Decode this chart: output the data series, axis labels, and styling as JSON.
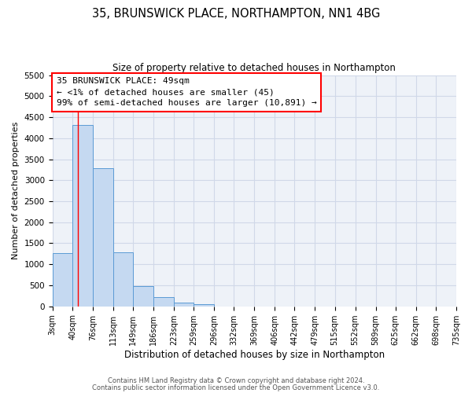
{
  "title1": "35, BRUNSWICK PLACE, NORTHAMPTON, NN1 4BG",
  "title2": "Size of property relative to detached houses in Northampton",
  "xlabel": "Distribution of detached houses by size in Northampton",
  "ylabel": "Number of detached properties",
  "bin_edges": [
    3,
    40,
    76,
    113,
    149,
    186,
    223,
    259,
    296,
    332,
    369,
    406,
    442,
    479,
    515,
    552,
    589,
    625,
    662,
    698,
    735
  ],
  "bar_heights": [
    1270,
    4320,
    3290,
    1290,
    480,
    220,
    85,
    55,
    0,
    0,
    0,
    0,
    0,
    0,
    0,
    0,
    0,
    0,
    0,
    0
  ],
  "bar_color": "#c5d9f1",
  "bar_edge_color": "#5b9bd5",
  "ylim": [
    0,
    5500
  ],
  "yticks": [
    0,
    500,
    1000,
    1500,
    2000,
    2500,
    3000,
    3500,
    4000,
    4500,
    5000,
    5500
  ],
  "xtick_labels": [
    "3sqm",
    "40sqm",
    "76sqm",
    "113sqm",
    "149sqm",
    "186sqm",
    "223sqm",
    "259sqm",
    "296sqm",
    "332sqm",
    "369sqm",
    "406sqm",
    "442sqm",
    "479sqm",
    "515sqm",
    "552sqm",
    "589sqm",
    "625sqm",
    "662sqm",
    "698sqm",
    "735sqm"
  ],
  "annotation_box_text": "35 BRUNSWICK PLACE: 49sqm\n← <1% of detached houses are smaller (45)\n99% of semi-detached houses are larger (10,891) →",
  "red_line_x": 49,
  "footer1": "Contains HM Land Registry data © Crown copyright and database right 2024.",
  "footer2": "Contains public sector information licensed under the Open Government Licence v3.0.",
  "grid_color": "#d0d8e8",
  "background_color": "#eef2f8",
  "title1_fontsize": 10.5,
  "title2_fontsize": 8.5,
  "xlabel_fontsize": 8.5,
  "ylabel_fontsize": 8,
  "tick_fontsize": 7.5,
  "xtick_fontsize": 7,
  "annot_fontsize": 8,
  "footer_fontsize": 6
}
